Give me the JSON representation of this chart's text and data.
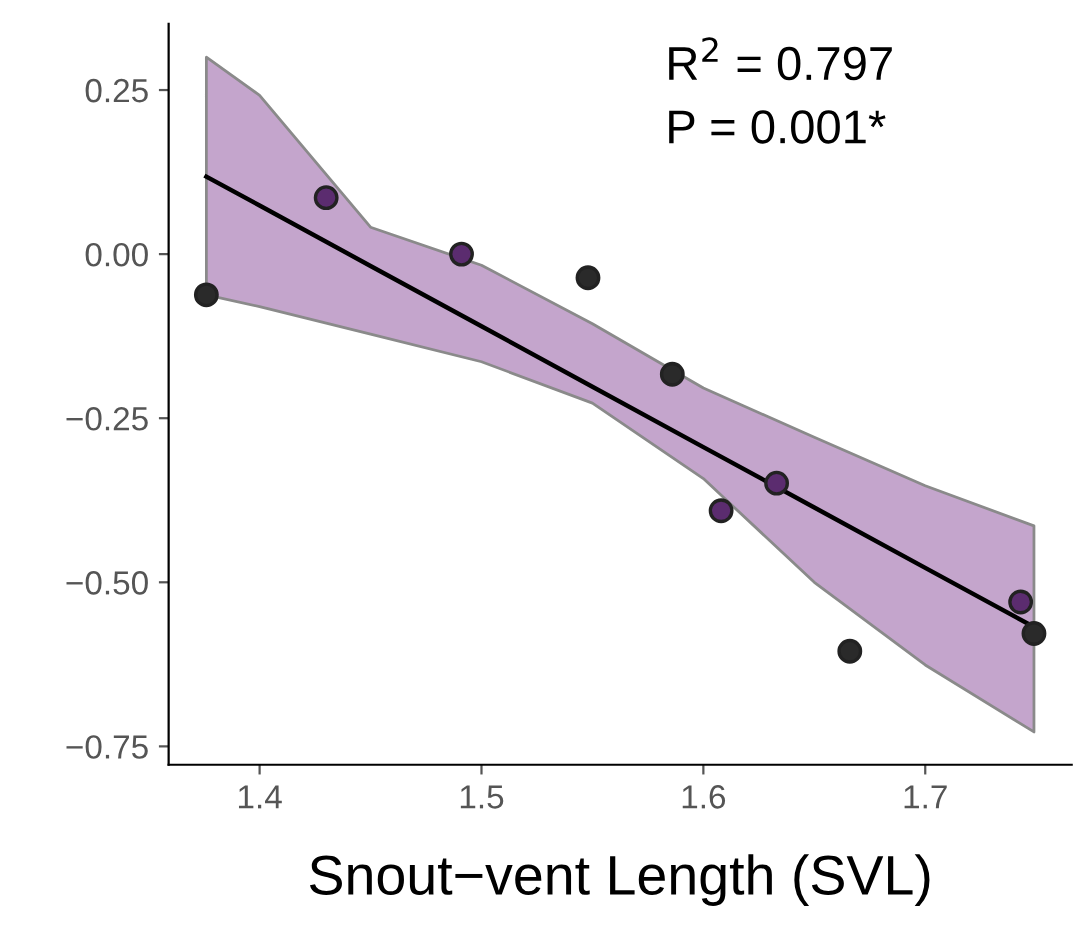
{
  "chart_data": {
    "type": "scatter",
    "xlabel": "Snout−vent Length (SVL)",
    "annotations": [
      "R$^{2}$ = 0.797",
      "P = 0.001*"
    ],
    "series": [
      {
        "color": "#5b2c6f",
        "marker": "circle",
        "x": [
          1.43,
          1.491,
          1.608,
          1.633,
          1.743
        ],
        "values": [
          0.086,
          0.0,
          -0.391,
          -0.349,
          -0.53
        ]
      },
      {
        "color": "#2a2a2a",
        "marker": "circle",
        "x": [
          1.376,
          1.548,
          1.586,
          1.666,
          1.749
        ],
        "values": [
          -0.062,
          -0.036,
          -0.183,
          -0.605,
          -0.578
        ]
      },
      {
        "type": "line",
        "color": "#000000",
        "marker": "none",
        "x": [
          1.376,
          1.4,
          1.45,
          1.5,
          1.55,
          1.6,
          1.65,
          1.7,
          1.749
        ],
        "values": [
          0.118,
          0.074,
          -0.018,
          -0.11,
          -0.202,
          -0.294,
          -0.386,
          -0.478,
          -0.568
        ],
        "lower": [
          -0.062,
          -0.08,
          -0.122,
          -0.164,
          -0.227,
          -0.342,
          -0.5,
          -0.626,
          -0.728
        ],
        "upper": [
          0.3,
          0.242,
          0.041,
          -0.017,
          -0.106,
          -0.204,
          -0.279,
          -0.353,
          -0.414
        ]
      }
    ],
    "xlim": [
      1.359,
      1.766
    ],
    "ylim": [
      -0.778,
      0.351
    ],
    "xticks": [
      1.4,
      1.5,
      1.6,
      1.7
    ],
    "yticks": [
      {
        "value": 0.25,
        "label": "0.25"
      },
      {
        "value": 0,
        "label": "0.00"
      },
      {
        "value": -0.25,
        "label": "−0.25"
      },
      {
        "value": -0.5,
        "label": "−0.50"
      },
      {
        "value": -0.75,
        "label": "−0.75"
      }
    ],
    "grid": false,
    "legend": false,
    "line_style": "solid"
  }
}
